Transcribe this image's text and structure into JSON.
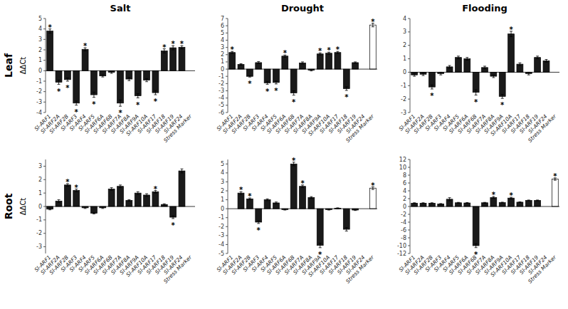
{
  "chart_data": [
    {
      "type": "bar",
      "title": "Salt",
      "ylabel": "ΔΔCt",
      "categories": [
        "Sl-ARF1",
        "Sl-ARF2A",
        "Sl-ARF2B",
        "Sl-ARF3",
        "Sl-ARF4",
        "Sl-ARF5",
        "Sl-ARF6A",
        "Sl-ARF6B",
        "Sl-ARF7A",
        "Sl-ARF8A",
        "Sl-ARF9A",
        "Sl-ARF10A",
        "Sl-ARF17",
        "Sl-ARF18",
        "Sl-ARF19",
        "Sl-ARF24",
        "Stress Marker"
      ],
      "values": [
        3.8,
        -1.1,
        -0.85,
        -3.1,
        2.05,
        -2.3,
        -0.5,
        -0.15,
        -3.1,
        -0.8,
        -2.4,
        -0.9,
        -2.1,
        1.9,
        2.2,
        2.25,
        null
      ],
      "errors": [
        0.2,
        0.2,
        0.15,
        0.2,
        0.15,
        0.25,
        0.1,
        0.1,
        0.3,
        0.15,
        0.2,
        0.15,
        0.2,
        0.2,
        0.2,
        0.15,
        null
      ],
      "colors": [
        "#1a1a1a",
        "#1a1a1a",
        "#1a1a1a",
        "#1a1a1a",
        "#1a1a1a",
        "#1a1a1a",
        "#1a1a1a",
        "#1a1a1a",
        "#1a1a1a",
        "#1a1a1a",
        "#1a1a1a",
        "#1a1a1a",
        "#1a1a1a",
        "#1a1a1a",
        "#1a1a1a",
        "#1a1a1a",
        "#ffffff"
      ],
      "annotations": [
        {
          "text": "Leaf"
        },
        {
          "category": "Sl-ARF1",
          "text": "*"
        },
        {
          "category": "Sl-ARF2A",
          "text": "*"
        },
        {
          "category": "Sl-ARF2B",
          "text": "*"
        },
        {
          "category": "Sl-ARF3",
          "text": "*"
        },
        {
          "category": "Sl-ARF4",
          "text": "*"
        },
        {
          "category": "Sl-ARF5",
          "text": "*"
        },
        {
          "category": "Sl-ARF7A",
          "text": "*"
        },
        {
          "category": "Sl-ARF9A",
          "text": "*"
        },
        {
          "category": "Sl-ARF17",
          "text": "*"
        },
        {
          "category": "Sl-ARF18",
          "text": "*"
        },
        {
          "category": "Sl-ARF19",
          "text": "*"
        },
        {
          "category": "Sl-ARF24",
          "text": "*"
        }
      ],
      "ylim": [
        -4,
        5
      ],
      "yticks": [
        -4,
        -3,
        -2,
        -1,
        0,
        1,
        2,
        3,
        4,
        5
      ],
      "grid": false
    },
    {
      "type": "bar",
      "title": "Drought",
      "categories": [
        "Sl-ARF1",
        "Sl-ARF2A",
        "Sl-ARF2B",
        "Sl-ARF3",
        "Sl-ARF4",
        "Sl-ARF5",
        "Sl-ARF6A",
        "Sl-ARF6B",
        "Sl-ARF7A",
        "Sl-ARF8A",
        "Sl-ARF9A",
        "Sl-ARF10A",
        "Sl-ARF17",
        "Sl-ARF18",
        "Sl-ARF19",
        "Sl-ARF24",
        "Stress Marker"
      ],
      "values": [
        2.3,
        0.65,
        -1.0,
        0.9,
        -1.9,
        -1.85,
        1.8,
        -3.3,
        0.85,
        -0.15,
        2.1,
        2.2,
        2.3,
        -2.7,
        0.9,
        null,
        6.1
      ],
      "errors": [
        0.15,
        0.1,
        0.1,
        0.15,
        0.2,
        0.2,
        0.15,
        0.3,
        0.15,
        0.1,
        0.15,
        0.15,
        0.15,
        0.25,
        0.1,
        null,
        0.25
      ],
      "colors": [
        "#1a1a1a",
        "#1a1a1a",
        "#1a1a1a",
        "#1a1a1a",
        "#1a1a1a",
        "#1a1a1a",
        "#1a1a1a",
        "#1a1a1a",
        "#1a1a1a",
        "#1a1a1a",
        "#1a1a1a",
        "#1a1a1a",
        "#1a1a1a",
        "#1a1a1a",
        "#1a1a1a",
        "#1a1a1a",
        "#ffffff"
      ],
      "annotations": [
        {
          "category": "Sl-ARF1",
          "text": "*"
        },
        {
          "category": "Sl-ARF2B",
          "text": "*"
        },
        {
          "category": "Sl-ARF4",
          "text": "*"
        },
        {
          "category": "Sl-ARF5",
          "text": "*"
        },
        {
          "category": "Sl-ARF6A",
          "text": "*"
        },
        {
          "category": "Sl-ARF6B",
          "text": "*"
        },
        {
          "category": "Sl-ARF9A",
          "text": "*"
        },
        {
          "category": "Sl-ARF10A",
          "text": "*"
        },
        {
          "category": "Sl-ARF17",
          "text": "*"
        },
        {
          "category": "Sl-ARF18",
          "text": "*"
        },
        {
          "category": "Stress Marker",
          "text": "*"
        }
      ],
      "ylim": [
        -6,
        7
      ],
      "yticks": [
        -6,
        -5,
        -4,
        -3,
        -2,
        -1,
        0,
        1,
        2,
        3,
        4,
        5,
        6,
        7
      ],
      "grid": false
    },
    {
      "type": "bar",
      "title": "Flooding",
      "categories": [
        "Sl-ARF1",
        "Sl-ARF2A",
        "Sl-ARF2B",
        "Sl-ARF3",
        "Sl-ARF4",
        "Sl-ARF5",
        "Sl-ARF6A",
        "Sl-ARF6B",
        "Sl-ARF7A",
        "Sl-ARF8A",
        "Sl-ARF9A",
        "Sl-ARF10A",
        "Sl-ARF17",
        "Sl-ARF18",
        "Sl-ARF19",
        "Sl-ARF24",
        "Stress Marker"
      ],
      "values": [
        -0.2,
        -0.15,
        -1.1,
        -0.1,
        0.4,
        1.1,
        1.0,
        -1.5,
        0.35,
        -0.3,
        -1.8,
        2.85,
        0.6,
        -0.1,
        1.1,
        0.85,
        null
      ],
      "errors": [
        0.1,
        0.1,
        0.15,
        0.1,
        0.1,
        0.1,
        0.1,
        0.2,
        0.1,
        0.1,
        0.15,
        0.2,
        0.1,
        0.1,
        0.1,
        0.1,
        null
      ],
      "colors": [
        "#1a1a1a",
        "#1a1a1a",
        "#1a1a1a",
        "#1a1a1a",
        "#1a1a1a",
        "#1a1a1a",
        "#1a1a1a",
        "#1a1a1a",
        "#1a1a1a",
        "#1a1a1a",
        "#1a1a1a",
        "#1a1a1a",
        "#1a1a1a",
        "#1a1a1a",
        "#1a1a1a",
        "#1a1a1a",
        "#ffffff"
      ],
      "annotations": [
        {
          "category": "Sl-ARF2B",
          "text": "*"
        },
        {
          "category": "Sl-ARF6B",
          "text": "*"
        },
        {
          "category": "Sl-ARF9A",
          "text": "*"
        },
        {
          "category": "Sl-ARF10A",
          "text": "*"
        }
      ],
      "ylim": [
        -3,
        4
      ],
      "yticks": [
        -3,
        -2,
        -1,
        0,
        1,
        2,
        3,
        4
      ],
      "grid": false
    },
    {
      "type": "bar",
      "ylabel": "ΔΔCt",
      "categories": [
        "Sl-ARF1",
        "Sl-ARF2A",
        "Sl-ARF2B",
        "Sl-ARF3",
        "Sl-ARF4",
        "Sl-ARF5",
        "Sl-ARF6A",
        "Sl-ARF6B",
        "Sl-ARF7A",
        "Sl-ARF8A",
        "Sl-ARF9A",
        "Sl-ARF10A",
        "Sl-ARF17",
        "Sl-ARF18",
        "Sl-ARF19",
        "Sl-ARF24",
        "Stress Marker"
      ],
      "values": [
        -0.2,
        0.4,
        1.6,
        1.2,
        -0.1,
        -0.5,
        -0.1,
        1.3,
        1.5,
        0.45,
        1.0,
        0.85,
        1.1,
        0.15,
        -0.8,
        2.65,
        null
      ],
      "errors": [
        0.05,
        0.1,
        0.1,
        0.1,
        0.05,
        0.05,
        0.05,
        0.1,
        0.1,
        0.05,
        0.1,
        0.1,
        0.1,
        0.05,
        0.1,
        0.15,
        null
      ],
      "colors": [
        "#1a1a1a",
        "#1a1a1a",
        "#1a1a1a",
        "#1a1a1a",
        "#1a1a1a",
        "#1a1a1a",
        "#1a1a1a",
        "#1a1a1a",
        "#1a1a1a",
        "#1a1a1a",
        "#1a1a1a",
        "#1a1a1a",
        "#1a1a1a",
        "#1a1a1a",
        "#1a1a1a",
        "#1a1a1a",
        "#ffffff"
      ],
      "annotations": [
        {
          "text": "Root"
        },
        {
          "category": "Sl-ARF2B",
          "text": "*"
        },
        {
          "category": "Sl-ARF3",
          "text": "*"
        },
        {
          "category": "Sl-ARF17",
          "text": "*"
        },
        {
          "category": "Sl-ARF19",
          "text": "*"
        }
      ],
      "ylim": [
        -3.5,
        3.5
      ],
      "yticks": [
        -3,
        -2,
        -1,
        0,
        1,
        2,
        3
      ],
      "grid": false
    },
    {
      "type": "bar",
      "categories": [
        "Sl-ARF1",
        "Sl-ARF2A",
        "Sl-ARF2B",
        "Sl-ARF3",
        "Sl-ARF4",
        "Sl-ARF5",
        "Sl-ARF6A",
        "Sl-ARF6B",
        "Sl-ARF7A",
        "Sl-ARF8A",
        "Sl-ARF9A",
        "Sl-ARF10A",
        "Sl-ARF17",
        "Sl-ARF18",
        "Sl-ARF19",
        "Sl-ARF24",
        "Stress Marker"
      ],
      "values": [
        null,
        1.75,
        1.1,
        -1.5,
        1.0,
        0.65,
        -0.1,
        5.0,
        2.5,
        1.25,
        -4.1,
        -0.1,
        0.05,
        -2.3,
        -0.15,
        null,
        2.3
      ],
      "errors": [
        null,
        0.15,
        0.1,
        0.15,
        0.1,
        0.1,
        0.05,
        0.2,
        0.15,
        0.1,
        0.25,
        0.05,
        0.05,
        0.2,
        0.05,
        null,
        0.15
      ],
      "colors": [
        "#1a1a1a",
        "#1a1a1a",
        "#1a1a1a",
        "#1a1a1a",
        "#1a1a1a",
        "#1a1a1a",
        "#1a1a1a",
        "#1a1a1a",
        "#1a1a1a",
        "#1a1a1a",
        "#1a1a1a",
        "#1a1a1a",
        "#1a1a1a",
        "#1a1a1a",
        "#1a1a1a",
        "#1a1a1a",
        "#ffffff"
      ],
      "annotations": [
        {
          "category": "Sl-ARF2A",
          "text": "*"
        },
        {
          "category": "Sl-ARF2B",
          "text": "*"
        },
        {
          "category": "Sl-ARF3",
          "text": "*"
        },
        {
          "category": "Sl-ARF6B",
          "text": "*"
        },
        {
          "category": "Sl-ARF7A",
          "text": "*"
        },
        {
          "category": "Sl-ARF9A",
          "text": "*"
        },
        {
          "category": "Stress Marker",
          "text": "*"
        }
      ],
      "ylim": [
        -5,
        5.5
      ],
      "yticks": [
        -5,
        -4,
        -3,
        -2,
        -1,
        0,
        1,
        2,
        3,
        4,
        5
      ],
      "grid": false
    },
    {
      "type": "bar",
      "categories": [
        "Sl-ARF1",
        "Sl-ARF2A",
        "Sl-ARF2B",
        "Sl-ARF3",
        "Sl-ARF4",
        "Sl-ARF5",
        "Sl-ARF6A",
        "Sl-ARF6B",
        "Sl-ARF7A",
        "Sl-ARF8A",
        "Sl-ARF9A",
        "Sl-ARF10A",
        "Sl-ARF17",
        "Sl-ARF18",
        "Sl-ARF19",
        "Sl-ARF24",
        "Stress Marker"
      ],
      "values": [
        0.85,
        0.85,
        0.85,
        0.65,
        1.85,
        0.95,
        0.9,
        -10.0,
        0.95,
        2.3,
        1.0,
        2.15,
        1.1,
        1.55,
        1.55,
        null,
        7.0
      ],
      "errors": [
        0.1,
        0.1,
        0.1,
        0.1,
        0.4,
        0.1,
        0.1,
        0.5,
        0.1,
        0.25,
        0.1,
        0.2,
        0.1,
        0.1,
        0.1,
        null,
        0.3
      ],
      "colors": [
        "#1a1a1a",
        "#1a1a1a",
        "#1a1a1a",
        "#1a1a1a",
        "#1a1a1a",
        "#1a1a1a",
        "#1a1a1a",
        "#1a1a1a",
        "#1a1a1a",
        "#1a1a1a",
        "#1a1a1a",
        "#1a1a1a",
        "#1a1a1a",
        "#1a1a1a",
        "#1a1a1a",
        "#1a1a1a",
        "#ffffff"
      ],
      "annotations": [
        {
          "category": "Sl-ARF6B",
          "text": "*"
        },
        {
          "category": "Sl-ARF8A",
          "text": "*"
        },
        {
          "category": "Sl-ARF10A",
          "text": "*"
        },
        {
          "category": "Stress Marker",
          "text": "*"
        }
      ],
      "ylim": [
        -12,
        12
      ],
      "yticks": [
        -12,
        -10,
        -8,
        -6,
        -4,
        -2,
        0,
        2,
        4,
        6,
        8,
        10,
        12
      ],
      "grid": false
    }
  ]
}
